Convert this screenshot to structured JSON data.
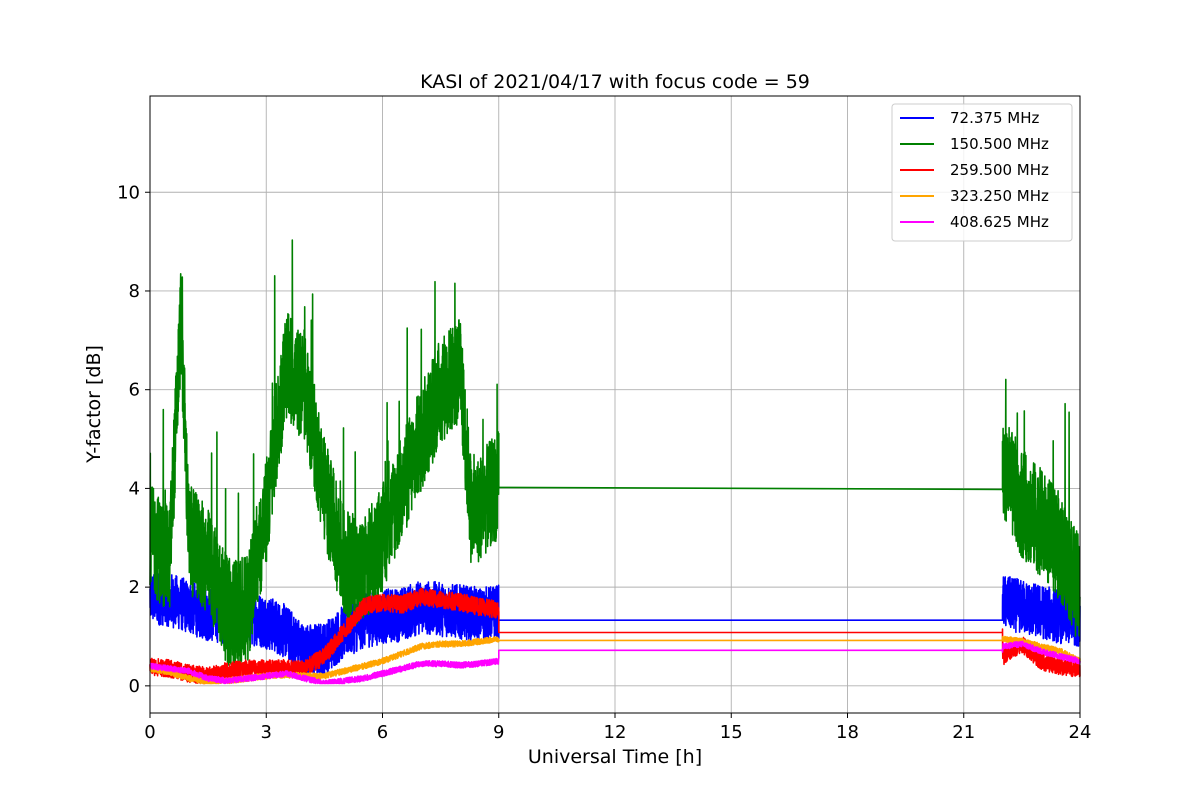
{
  "chart_data": {
    "type": "line",
    "title": "KASI of 2021/04/17 with focus code = 59",
    "xlabel": "Universal Time [h]",
    "ylabel": "Y-factor [dB]",
    "xlim": [
      0,
      24
    ],
    "ylim": [
      -0.55,
      11.95
    ],
    "xticks": [
      0,
      3,
      6,
      9,
      12,
      15,
      18,
      21,
      24
    ],
    "yticks": [
      0,
      2,
      4,
      6,
      8,
      10
    ],
    "grid": true,
    "legend_position": "top-right",
    "series": [
      {
        "name": " 72.375 MHz",
        "color": "#0000ff",
        "x": [
          0,
          0.5,
          1,
          1.5,
          2,
          2.5,
          3,
          3.5,
          4,
          4.5,
          5,
          5.5,
          6,
          6.5,
          7,
          7.5,
          8,
          8.5,
          9,
          9.01,
          22,
          22.01,
          22.5,
          23,
          23.5,
          24
        ],
        "y": [
          1.8,
          1.75,
          1.6,
          1.45,
          1.4,
          1.4,
          1.3,
          1.1,
          0.7,
          0.75,
          1.1,
          1.3,
          1.4,
          1.45,
          1.6,
          1.55,
          1.5,
          1.45,
          1.5,
          1.33,
          1.33,
          1.7,
          1.6,
          1.5,
          1.4,
          1.35
        ],
        "noise": 0.55
      },
      {
        "name": "150.500 MHz",
        "color": "#008000",
        "x": [
          0,
          0.5,
          0.8,
          1,
          1.5,
          2,
          2.5,
          3,
          3.5,
          4,
          4.5,
          5,
          5.5,
          6,
          6.5,
          7,
          7.5,
          8,
          8.3,
          8.7,
          9,
          9.01,
          22,
          22.01,
          22.5,
          23,
          23.5,
          24
        ],
        "y": [
          3,
          2.5,
          7.5,
          3,
          2.5,
          1.5,
          1.5,
          3.5,
          6.5,
          6,
          4,
          2.5,
          2.3,
          3,
          4,
          5,
          6,
          6.4,
          3.4,
          3.8,
          4.1,
          4.02,
          3.98,
          4.4,
          3.7,
          3.3,
          2.8,
          1.9
        ],
        "noise": 1.1
      },
      {
        "name": "259.500 MHz",
        "color": "#ff0000",
        "x": [
          0,
          0.5,
          1,
          1.5,
          2,
          2.5,
          3,
          3.5,
          4,
          4.5,
          5,
          5.5,
          6,
          6.5,
          7,
          7.5,
          8,
          8.5,
          9,
          9.01,
          22,
          22.01,
          22.5,
          23,
          23.5,
          24
        ],
        "y": [
          0.4,
          0.35,
          0.25,
          0.2,
          0.3,
          0.35,
          0.35,
          0.35,
          0.35,
          0.6,
          1.1,
          1.6,
          1.7,
          1.65,
          1.8,
          1.75,
          1.7,
          1.6,
          1.55,
          1.08,
          1.08,
          0.6,
          0.85,
          0.5,
          0.4,
          0.35
        ],
        "noise": 0.18
      },
      {
        "name": "323.250 MHz",
        "color": "#ffa500",
        "x": [
          0,
          0.5,
          1,
          1.5,
          2,
          2.5,
          3,
          3.5,
          4,
          4.5,
          5,
          5.5,
          6,
          6.5,
          7,
          7.5,
          8,
          8.5,
          9,
          9.01,
          22,
          22.01,
          22.5,
          23,
          23.5,
          24
        ],
        "y": [
          0.35,
          0.28,
          0.15,
          0.08,
          0.1,
          0.15,
          0.2,
          0.22,
          0.2,
          0.2,
          0.3,
          0.4,
          0.5,
          0.65,
          0.8,
          0.85,
          0.85,
          0.9,
          0.95,
          0.92,
          0.92,
          0.95,
          0.9,
          0.8,
          0.7,
          0.5
        ],
        "noise": 0.06
      },
      {
        "name": "408.625 MHz",
        "color": "#ff00ff",
        "x": [
          0,
          0.5,
          1,
          1.5,
          2,
          2.5,
          3,
          3.5,
          4,
          4.5,
          5,
          5.5,
          6,
          6.5,
          7,
          7.5,
          8,
          8.5,
          9,
          9.01,
          22,
          22.01,
          22.5,
          23,
          23.5,
          24
        ],
        "y": [
          0.4,
          0.35,
          0.3,
          0.15,
          0.1,
          0.15,
          0.2,
          0.25,
          0.15,
          0.05,
          0.1,
          0.15,
          0.25,
          0.35,
          0.45,
          0.45,
          0.42,
          0.45,
          0.5,
          0.72,
          0.72,
          0.8,
          0.85,
          0.7,
          0.6,
          0.5
        ],
        "noise": 0.06
      }
    ]
  }
}
